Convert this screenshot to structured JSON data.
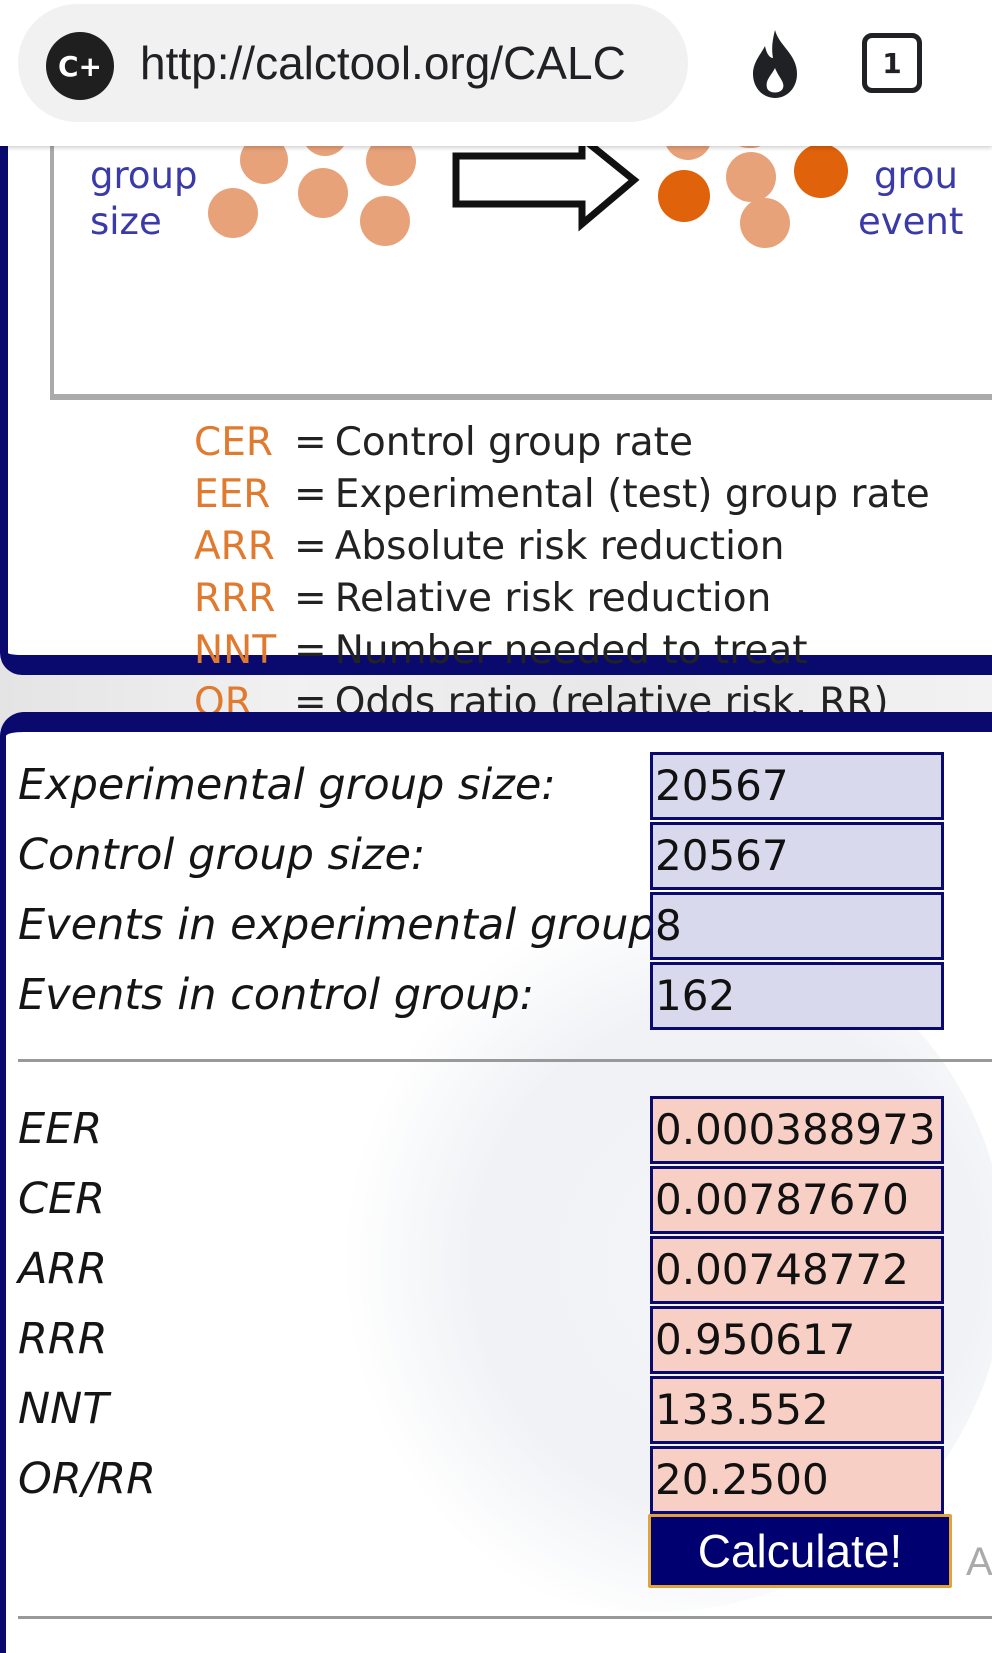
{
  "browser": {
    "site_badge": "C+",
    "url": "http://calctool.org/CALC",
    "tab_count": "1",
    "icons": [
      "site-badge-icon",
      "fire-icon",
      "tabs-icon"
    ]
  },
  "diagram": {
    "left_label": [
      "group",
      "size"
    ],
    "right_label": [
      "grou",
      "event"
    ],
    "colors": {
      "light_dot": "#e8a27a",
      "dark_dot": "#e0620a",
      "label": "#3a3aa8"
    }
  },
  "legend": [
    {
      "abbr": "CER",
      "desc": "Control group rate"
    },
    {
      "abbr": "EER",
      "desc": "Experimental (test) group rate"
    },
    {
      "abbr": "ARR",
      "desc": "Absolute risk reduction"
    },
    {
      "abbr": "RRR",
      "desc": "Relative risk reduction"
    },
    {
      "abbr": "NNT",
      "desc": "Number needed to treat"
    },
    {
      "abbr": "OR",
      "desc": "Odds ratio (relative risk, RR)"
    }
  ],
  "inputs": [
    {
      "label": "Experimental group size:",
      "value": "20567"
    },
    {
      "label": "Control group size:",
      "value": "20567"
    },
    {
      "label": "Events in experimental group:",
      "value": "8"
    },
    {
      "label": "Events in control group:",
      "value": "162"
    }
  ],
  "outputs": [
    {
      "label": "EER",
      "value": "0.000388973"
    },
    {
      "label": "CER",
      "value": "0.00787670"
    },
    {
      "label": "ARR",
      "value": "0.00748772"
    },
    {
      "label": "RRR",
      "value": "0.950617"
    },
    {
      "label": "NNT",
      "value": "133.552"
    },
    {
      "label": "OR/RR",
      "value": "20.2500"
    }
  ],
  "calculate_label": "Calculate!",
  "trailing_text": "A",
  "colors": {
    "accent": "#0a0a6e",
    "input_bg": "#d9d9ee",
    "output_bg": "#f7cfc5",
    "legend_abbr": "#e07a2f"
  }
}
